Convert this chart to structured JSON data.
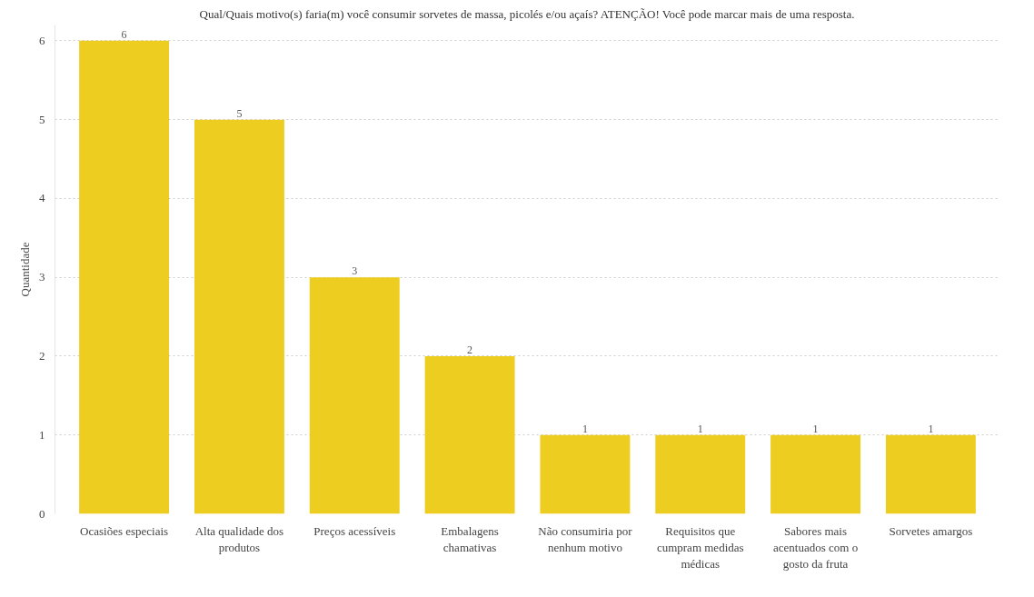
{
  "chart_data": {
    "type": "bar",
    "title": "Qual/Quais motivo(s) faria(m) você consumir sorvetes de massa, picolés e/ou açaís? ATENÇÃO! Você pode marcar mais de uma resposta.",
    "ylabel": "Quantidade",
    "categories": [
      "Ocasiões especiais",
      "Alta qualidade dos produtos",
      "Preços acessíveis",
      "Embalagens chamativas",
      "Não consumiria por nenhum motivo",
      "Requisitos que cumpram medidas médicas",
      "Sabores mais acentuados com o gosto da fruta",
      "Sorvetes amargos"
    ],
    "values": [
      6,
      5,
      3,
      2,
      1,
      1,
      1,
      1
    ],
    "color": "#eecd21",
    "ylim": [
      0,
      6.2
    ],
    "yticks": [
      0,
      1,
      2,
      3,
      4,
      5,
      6
    ],
    "grid": "y",
    "data_labels": true
  }
}
